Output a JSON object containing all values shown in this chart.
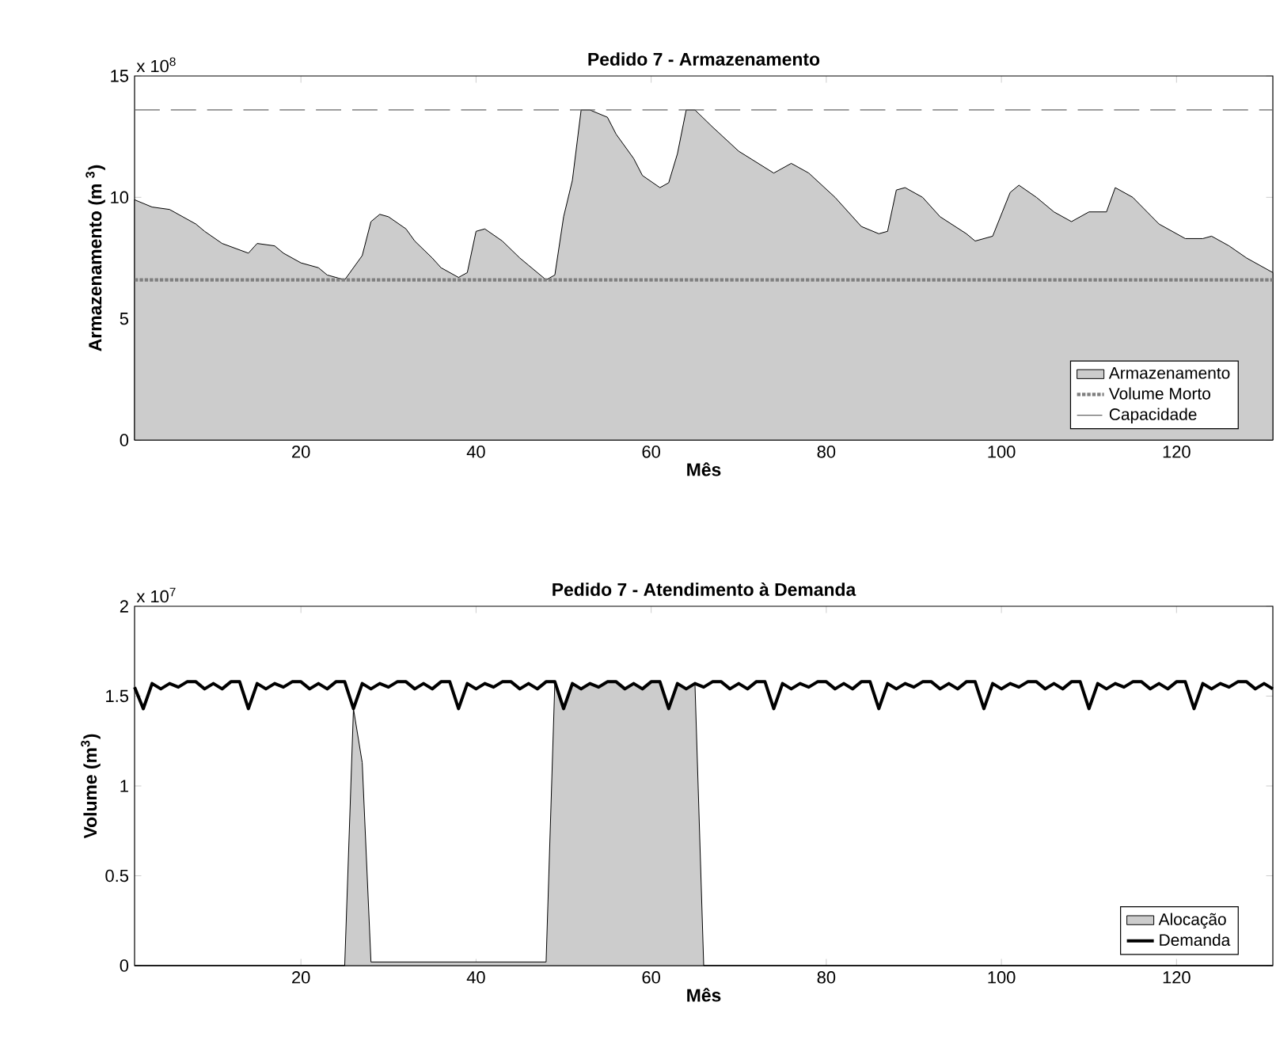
{
  "chart_data": [
    {
      "type": "area",
      "title": "Pedido 7 - Armazenamento",
      "xlabel": "Mês",
      "ylabel": "Armazenamento (m $^{3}$)",
      "annotations": [
        "x 10$^{8}$"
      ],
      "x": [
        1,
        3,
        5,
        6,
        8,
        9,
        11,
        14,
        15,
        17,
        18,
        20,
        22,
        23,
        25,
        27,
        28,
        29,
        30,
        32,
        33,
        35,
        36,
        38,
        39,
        40,
        41,
        43,
        45,
        46,
        48,
        49,
        50,
        51,
        52,
        53,
        55,
        56,
        58,
        59,
        61,
        62,
        63,
        64,
        65,
        67,
        70,
        74,
        76,
        78,
        81,
        84,
        86,
        87,
        88,
        89,
        91,
        93,
        96,
        97,
        99,
        101,
        102,
        104,
        106,
        108,
        110,
        112,
        113,
        115,
        118,
        121,
        123,
        124,
        126,
        128,
        131
      ],
      "series": [
        {
          "name": "Armazenamento",
          "color": "#cccccc",
          "values": [
            9.9,
            9.6,
            9.5,
            9.3,
            8.9,
            8.6,
            8.1,
            7.7,
            8.1,
            8.0,
            7.7,
            7.3,
            7.1,
            6.8,
            6.6,
            7.6,
            9.0,
            9.3,
            9.2,
            8.7,
            8.2,
            7.5,
            7.1,
            6.7,
            6.9,
            8.6,
            8.7,
            8.2,
            7.5,
            7.2,
            6.6,
            6.8,
            9.2,
            10.7,
            13.6,
            13.6,
            13.3,
            12.6,
            11.6,
            10.9,
            10.4,
            10.6,
            11.8,
            13.6,
            13.6,
            12.9,
            11.9,
            11.0,
            11.4,
            11.0,
            10.0,
            8.8,
            8.5,
            8.6,
            10.3,
            10.4,
            10.0,
            9.2,
            8.5,
            8.2,
            8.4,
            10.2,
            10.5,
            10.0,
            9.4,
            9.0,
            9.4,
            9.4,
            10.4,
            10.0,
            8.9,
            8.3,
            8.3,
            8.4,
            8.0,
            7.5,
            6.9
          ]
        }
      ],
      "ref_lines": [
        {
          "axis": "y",
          "value": 6.6,
          "label": "Volume Morto",
          "color": "#7f7f7f",
          "line_style": "dotted"
        },
        {
          "axis": "y",
          "value": 13.6,
          "label": "Capacidade",
          "color": "#666666",
          "line_style": "dashed"
        }
      ],
      "xlim": [
        1,
        131
      ],
      "ylim": [
        0,
        15
      ],
      "xticks": [
        20,
        40,
        60,
        80,
        100,
        120
      ],
      "yticks": [
        0,
        5,
        10,
        15
      ],
      "legend": "bottom right"
    },
    {
      "type": "area",
      "title": "Pedido 7 - Atendimento à Demanda",
      "xlabel": "Mês",
      "ylabel": "Volume (m$^{3}$)",
      "annotations": [
        "x 10$^{7}$"
      ],
      "x": [
        1,
        2,
        3,
        4,
        5,
        6,
        7,
        8,
        9,
        10,
        11,
        12,
        13,
        14,
        15,
        16,
        17,
        18,
        19,
        20,
        21,
        22,
        23,
        24,
        25,
        26,
        27,
        28,
        29,
        30,
        31,
        32,
        33,
        34,
        35,
        36,
        37,
        38,
        39,
        40,
        41,
        42,
        43,
        44,
        45,
        46,
        47,
        48,
        49,
        50,
        51,
        52,
        53,
        54,
        55,
        56,
        57,
        58,
        59,
        60,
        61,
        62,
        63,
        64,
        65,
        66,
        67,
        68,
        69,
        70,
        71,
        72,
        73,
        74,
        75,
        76,
        77,
        78,
        79,
        80,
        81,
        82,
        83,
        84,
        85,
        86,
        87,
        88,
        89,
        90,
        91,
        92,
        93,
        94,
        95,
        96,
        97,
        98,
        99,
        100,
        101,
        102,
        103,
        104,
        105,
        106,
        107,
        108,
        109,
        110,
        111,
        112,
        113,
        114,
        115,
        116,
        117,
        118,
        119,
        120,
        121,
        122,
        123,
        124,
        125,
        126,
        127,
        128,
        129,
        130,
        131
      ],
      "series": [
        {
          "name": "Alocação",
          "type": "area",
          "color": "#cccccc",
          "values": [
            0,
            0,
            0,
            0,
            0,
            0,
            0,
            0,
            0,
            0,
            0,
            0,
            0,
            0,
            0,
            0,
            0,
            0,
            0,
            0,
            0,
            0,
            0,
            0,
            0,
            1.43,
            1.13,
            0.02,
            0.02,
            0.02,
            0.02,
            0.02,
            0.02,
            0.02,
            0.02,
            0.02,
            0.02,
            0.02,
            0.02,
            0.02,
            0.02,
            0.02,
            0.02,
            0.02,
            0.02,
            0.02,
            0.02,
            0.02,
            1.58,
            1.43,
            1.57,
            1.54,
            1.57,
            1.55,
            1.58,
            1.58,
            1.54,
            1.57,
            1.54,
            1.58,
            1.58,
            1.43,
            1.57,
            1.54,
            1.57,
            0,
            0,
            0,
            0,
            0,
            0,
            0,
            0,
            0,
            0,
            0,
            0,
            0,
            0,
            0,
            0,
            0,
            0,
            0,
            0,
            0,
            0,
            0,
            0,
            0,
            0,
            0,
            0,
            0,
            0,
            0,
            0,
            0,
            0,
            0,
            0,
            0,
            0,
            0,
            0,
            0,
            0,
            0,
            0,
            0,
            0,
            0,
            0,
            0,
            0,
            0,
            0,
            0,
            0,
            0,
            0,
            0,
            0,
            0,
            0,
            0,
            0,
            0,
            0,
            0,
            0
          ]
        },
        {
          "name": "Demanda",
          "type": "line",
          "color": "#000000",
          "values": [
            1.55,
            1.43,
            1.57,
            1.54,
            1.57,
            1.55,
            1.58,
            1.58,
            1.54,
            1.57,
            1.54,
            1.58,
            1.58,
            1.43,
            1.57,
            1.54,
            1.57,
            1.55,
            1.58,
            1.58,
            1.54,
            1.57,
            1.54,
            1.58,
            1.58,
            1.43,
            1.57,
            1.54,
            1.57,
            1.55,
            1.58,
            1.58,
            1.54,
            1.57,
            1.54,
            1.58,
            1.58,
            1.43,
            1.57,
            1.54,
            1.57,
            1.55,
            1.58,
            1.58,
            1.54,
            1.57,
            1.54,
            1.58,
            1.58,
            1.43,
            1.57,
            1.54,
            1.57,
            1.55,
            1.58,
            1.58,
            1.54,
            1.57,
            1.54,
            1.58,
            1.58,
            1.43,
            1.57,
            1.54,
            1.57,
            1.55,
            1.58,
            1.58,
            1.54,
            1.57,
            1.54,
            1.58,
            1.58,
            1.43,
            1.57,
            1.54,
            1.57,
            1.55,
            1.58,
            1.58,
            1.54,
            1.57,
            1.54,
            1.58,
            1.58,
            1.43,
            1.57,
            1.54,
            1.57,
            1.55,
            1.58,
            1.58,
            1.54,
            1.57,
            1.54,
            1.58,
            1.58,
            1.43,
            1.57,
            1.54,
            1.57,
            1.55,
            1.58,
            1.58,
            1.54,
            1.57,
            1.54,
            1.58,
            1.58,
            1.43,
            1.57,
            1.54,
            1.57,
            1.55,
            1.58,
            1.58,
            1.54,
            1.57,
            1.54,
            1.58,
            1.58,
            1.43,
            1.57,
            1.54,
            1.57,
            1.55,
            1.58,
            1.58,
            1.54,
            1.57,
            1.54
          ]
        }
      ],
      "xlim": [
        1,
        131
      ],
      "ylim": [
        0,
        2
      ],
      "xticks": [
        20,
        40,
        60,
        80,
        100,
        120
      ],
      "yticks": [
        0,
        0.5,
        1,
        1.5,
        2
      ],
      "legend": "bottom right"
    }
  ]
}
